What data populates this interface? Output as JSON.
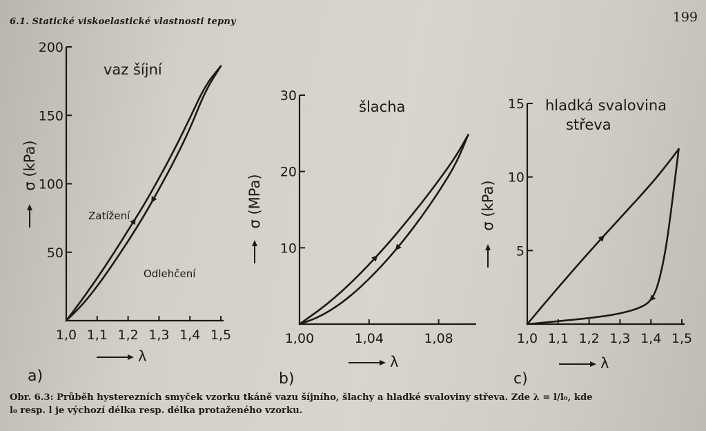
{
  "header": {
    "section_title": "6.1. Statické viskoelastické vlastnosti tepny",
    "page_number": "199"
  },
  "chart_data": [
    {
      "type": "line",
      "panel_label": "a)",
      "title": "vaz šíjní",
      "title_lines": [
        "vaz šíjní"
      ],
      "xlabel": "λ",
      "ylabel": "σ (kPa)",
      "xlim": [
        1.0,
        1.5
      ],
      "ylim": [
        0,
        200
      ],
      "xticks": [
        "1,0",
        "1,1",
        "1,2",
        "1,3",
        "1,4",
        "1,5"
      ],
      "yticks": [
        "50",
        "100",
        "150",
        "200"
      ],
      "annotations": [
        "Zatížení",
        "Odlehčení"
      ],
      "series": [
        {
          "name": "Zatížení",
          "x": [
            1.0,
            1.05,
            1.1,
            1.15,
            1.2,
            1.25,
            1.3,
            1.35,
            1.4,
            1.45,
            1.5
          ],
          "y": [
            0,
            15,
            31,
            48,
            66,
            84,
            104,
            125,
            148,
            172,
            186
          ]
        },
        {
          "name": "Odlehčení",
          "x": [
            1.5,
            1.45,
            1.4,
            1.35,
            1.3,
            1.25,
            1.2,
            1.15,
            1.1,
            1.05,
            1.0
          ],
          "y": [
            186,
            168,
            140,
            117,
            96,
            76,
            58,
            41,
            25,
            11,
            0
          ]
        }
      ]
    },
    {
      "type": "line",
      "panel_label": "b)",
      "title": "šlacha",
      "title_lines": [
        "šlacha"
      ],
      "xlabel": "λ",
      "ylabel": "σ (MPa)",
      "xlim": [
        1.0,
        1.1
      ],
      "ylim": [
        0,
        30
      ],
      "xticks": [
        "1,00",
        "1,04",
        "1,08"
      ],
      "yticks": [
        "10",
        "20",
        "30"
      ],
      "annotations": [],
      "series": [
        {
          "name": "",
          "x": [
            1.0,
            1.01,
            1.02,
            1.03,
            1.04,
            1.05,
            1.06,
            1.07,
            1.08,
            1.09,
            1.097
          ],
          "y": [
            0,
            1.6,
            3.4,
            5.5,
            7.8,
            10.3,
            13.0,
            15.8,
            18.8,
            22.0,
            24.8
          ]
        },
        {
          "name": "",
          "x": [
            1.097,
            1.09,
            1.08,
            1.07,
            1.06,
            1.05,
            1.04,
            1.03,
            1.02,
            1.01,
            1.0
          ],
          "y": [
            24.8,
            21.0,
            17.3,
            14.0,
            11.0,
            8.3,
            5.9,
            3.8,
            2.1,
            0.8,
            0
          ]
        }
      ]
    },
    {
      "type": "line",
      "panel_label": "c)",
      "title": "hladká svalovina střeva",
      "title_lines": [
        "hladká svalovina",
        "střeva"
      ],
      "xlabel": "λ",
      "ylabel": "σ (kPa)",
      "xlim": [
        1.0,
        1.5
      ],
      "ylim": [
        0,
        15
      ],
      "xticks": [
        "1,0",
        "1,1",
        "1,2",
        "1,3",
        "1,4",
        "1,5"
      ],
      "yticks": [
        "5",
        "10",
        "15"
      ],
      "annotations": [],
      "series": [
        {
          "name": "",
          "x": [
            1.0,
            1.1,
            1.2,
            1.3,
            1.4,
            1.45,
            1.49
          ],
          "y": [
            0,
            2.5,
            4.9,
            7.2,
            9.5,
            10.8,
            11.9
          ]
        },
        {
          "name": "",
          "x": [
            1.49,
            1.47,
            1.45,
            1.43,
            1.41,
            1.38,
            1.3,
            1.2,
            1.1,
            1.0
          ],
          "y": [
            11.9,
            8.5,
            5.3,
            3.2,
            1.9,
            1.2,
            0.7,
            0.4,
            0.2,
            0
          ]
        }
      ]
    }
  ],
  "caption": {
    "line1": "Obr. 6.3: Průběh hysterezních smyček vzorku tkáně vazu šíjního, šlachy a hladké svaloviny střeva. Zde λ = l/l₀, kde",
    "line2": "l₀ resp. l je výchozí délka resp. délka protaženého vzorku."
  }
}
